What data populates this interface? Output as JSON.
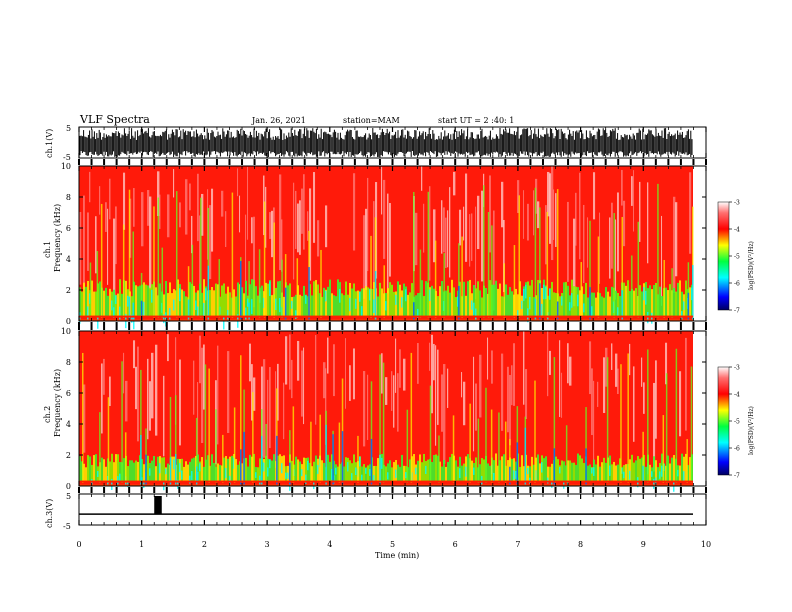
{
  "header": {
    "title": "VLF Spectra",
    "date": "Jan. 26, 2021",
    "station": "station=MAM",
    "start": "start UT =  2 :40: 1"
  },
  "chart_data": [
    {
      "type": "line",
      "panel": "ch1-waveform",
      "ylabel": "ch.1(V)",
      "yticks": [
        "5",
        "-5"
      ],
      "ylim": [
        -5,
        5
      ],
      "x_range_min": [
        0,
        9.83
      ],
      "description_values": "dense broadband noise filling most of the range"
    },
    {
      "type": "heatmap",
      "panel": "ch1-spectrogram",
      "ylabel_top": "ch.1",
      "ylabel": "Frequency (kHz)",
      "yticks": [
        "0",
        "2",
        "4",
        "6",
        "8",
        "10"
      ],
      "ylim": [
        0,
        10
      ],
      "xlim": [
        0,
        10
      ],
      "colorbar": {
        "label": "log(PSD)(V²/Hz)",
        "ticks": [
          "-3",
          "-4",
          "-5",
          "-6",
          "-7"
        ],
        "range": [
          -7,
          -3
        ]
      }
    },
    {
      "type": "heatmap",
      "panel": "ch2-spectrogram",
      "ylabel_top": "ch.2",
      "ylabel": "Frequency (kHz)",
      "yticks": [
        "0",
        "2",
        "4",
        "6",
        "8",
        "10"
      ],
      "ylim": [
        0,
        10
      ],
      "xlim": [
        0,
        10
      ],
      "colorbar": {
        "label": "log(PSD)(V²/Hz)",
        "ticks": [
          "-3",
          "-4",
          "-5",
          "-6",
          "-7"
        ],
        "range": [
          -7,
          -3
        ]
      }
    },
    {
      "type": "line",
      "panel": "ch3-waveform",
      "ylabel": "ch.3(V)",
      "yticks": [
        "5",
        "0",
        "-5"
      ],
      "ylim": [
        -5,
        5
      ],
      "baseline": -1.5,
      "pulse": {
        "x_start": 1.2,
        "x_end": 1.32,
        "y": 5
      }
    }
  ],
  "x_axis": {
    "label": "Time (min)",
    "ticks": [
      "0",
      "1",
      "2",
      "3",
      "4",
      "5",
      "6",
      "7",
      "8",
      "9",
      "10"
    ]
  },
  "colors": {
    "spectrum_high": "#ff0000",
    "spectrum_mid": "#ffee00",
    "spectrum_low": "#00ff40",
    "spectrum_lower": "#00ffff",
    "spectrum_min": "#0000aa"
  }
}
